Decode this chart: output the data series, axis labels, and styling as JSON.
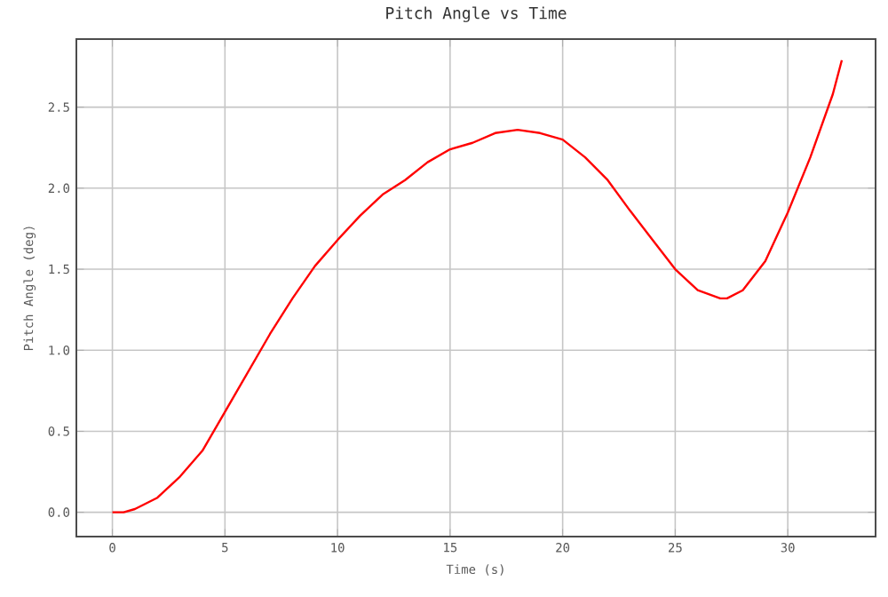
{
  "chart_data": {
    "type": "line",
    "title": "Pitch Angle vs Time",
    "xlabel": "Time (s)",
    "ylabel": "Pitch Angle (deg)",
    "x": [
      0,
      0.5,
      1,
      2,
      3,
      4,
      5,
      6,
      7,
      8,
      9,
      10,
      11,
      12,
      13,
      14,
      15,
      16,
      17,
      18,
      19,
      20,
      21,
      22,
      23,
      24,
      25,
      26,
      27,
      27.3,
      28,
      29,
      30,
      31,
      32,
      32.4
    ],
    "series": [
      {
        "color": "#ff0000",
        "values": [
          0,
          0,
          0.02,
          0.09,
          0.22,
          0.38,
          0.62,
          0.86,
          1.1,
          1.32,
          1.52,
          1.68,
          1.83,
          1.96,
          2.05,
          2.16,
          2.24,
          2.28,
          2.34,
          2.36,
          2.34,
          2.3,
          2.19,
          2.05,
          1.86,
          1.68,
          1.5,
          1.37,
          1.32,
          1.32,
          1.37,
          1.55,
          1.85,
          2.19,
          2.58,
          2.79
        ]
      }
    ],
    "xlim": [
      -1.6,
      33.9
    ],
    "ylim": [
      -0.15,
      2.92
    ],
    "xticks": [
      0,
      5,
      10,
      15,
      20,
      25,
      30
    ],
    "yticks": [
      {
        "value": 0,
        "label": "0.0"
      },
      {
        "value": 0.5,
        "label": "0.5"
      },
      {
        "value": 1,
        "label": "1.0"
      },
      {
        "value": 1.5,
        "label": "1.5"
      },
      {
        "value": 2,
        "label": "2.0"
      },
      {
        "value": 2.5,
        "label": "2.5"
      }
    ],
    "grid": true,
    "marker": "none",
    "line_style": "solid"
  }
}
